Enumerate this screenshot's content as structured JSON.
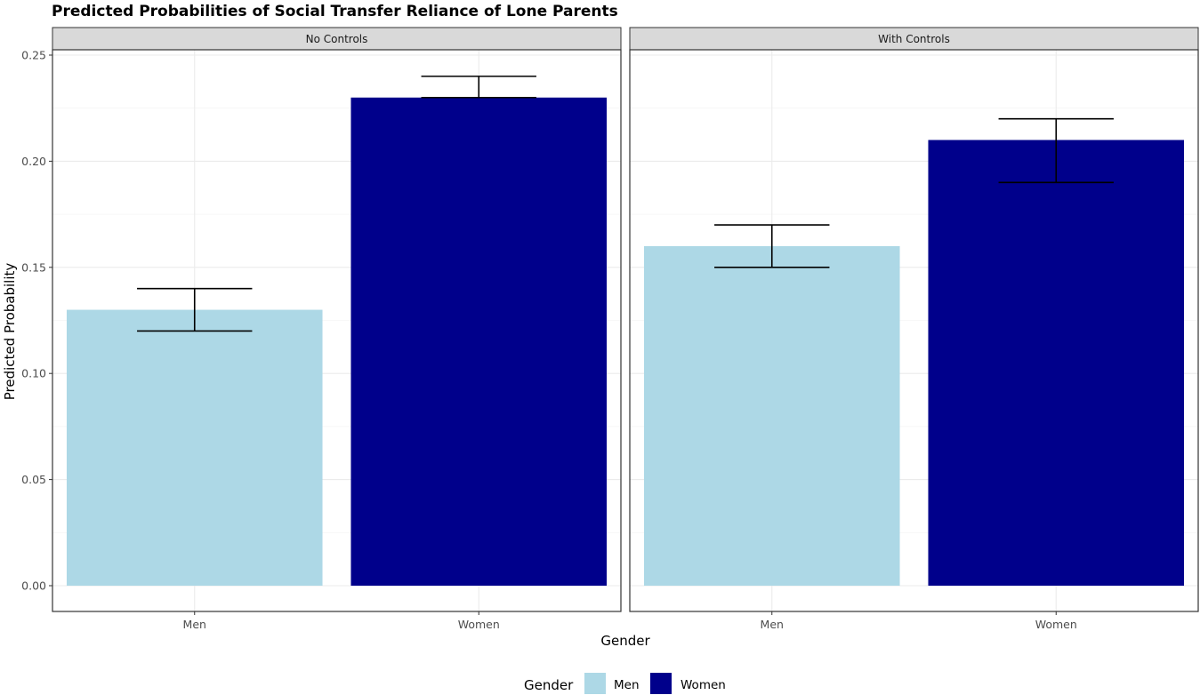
{
  "chart_data": {
    "type": "bar",
    "title": "Predicted Probabilities of Social Transfer Reliance of Lone Parents",
    "xlabel": "Gender",
    "ylabel": "Predicted Probability",
    "ylim": [
      0,
      0.25
    ],
    "yticks": [
      "0.00",
      "0.05",
      "0.10",
      "0.15",
      "0.20",
      "0.25"
    ],
    "yticks_values": [
      0,
      0.05,
      0.1,
      0.15,
      0.2,
      0.25
    ],
    "categories": [
      "Men",
      "Women"
    ],
    "grid": true,
    "legend_placement": "bottom",
    "legend": {
      "title": "Gender",
      "entries": [
        {
          "label": "Men",
          "color": "#add8e6"
        },
        {
          "label": "Women",
          "color": "#00008b"
        }
      ]
    },
    "panels": [
      {
        "label": "No Controls",
        "bars": [
          {
            "category": "Men",
            "value": 0.13,
            "lower": 0.12,
            "upper": 0.14
          },
          {
            "category": "Women",
            "value": 0.23,
            "lower": 0.23,
            "upper": 0.24
          }
        ]
      },
      {
        "label": "With Controls",
        "bars": [
          {
            "category": "Men",
            "value": 0.16,
            "lower": 0.15,
            "upper": 0.17
          },
          {
            "category": "Women",
            "value": 0.21,
            "lower": 0.19,
            "upper": 0.22
          }
        ]
      }
    ]
  }
}
